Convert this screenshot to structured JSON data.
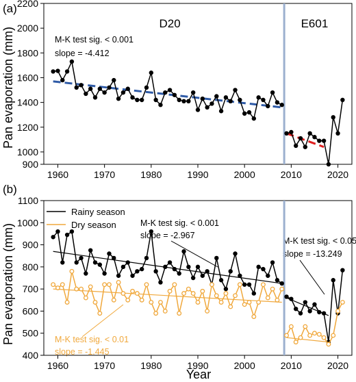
{
  "chart_data": [
    {
      "panel": "(a)",
      "type": "line",
      "ylabel": "Pan evaporation (mm)",
      "xlim": [
        1957,
        2023
      ],
      "ylim": [
        900,
        2200
      ],
      "yticks": [
        900,
        1000,
        1200,
        1400,
        1600,
        1800,
        2000,
        2200
      ],
      "xticks": [
        1960,
        1970,
        1980,
        1990,
        2000,
        2010,
        2020
      ],
      "periods": [
        {
          "label": "D20",
          "x": 1984
        },
        {
          "label": "E601",
          "x": 2015
        }
      ],
      "divider_x": 2008.5,
      "series": [
        {
          "color": "#000000",
          "x": [
            1959,
            1960,
            1961,
            1962,
            1963,
            1964,
            1965,
            1966,
            1967,
            1968,
            1969,
            1970,
            1971,
            1972,
            1973,
            1974,
            1975,
            1976,
            1977,
            1978,
            1979,
            1980,
            1981,
            1982,
            1983,
            1984,
            1985,
            1986,
            1987,
            1988,
            1989,
            1990,
            1991,
            1992,
            1993,
            1994,
            1995,
            1996,
            1997,
            1998,
            1999,
            2000,
            2001,
            2002,
            2003,
            2004,
            2005,
            2006,
            2007,
            2008
          ],
          "values": [
            1650,
            1655,
            1580,
            1650,
            1730,
            1520,
            1540,
            1470,
            1510,
            1440,
            1510,
            1480,
            1520,
            1580,
            1430,
            1480,
            1510,
            1440,
            1420,
            1420,
            1520,
            1640,
            1420,
            1380,
            1480,
            1500,
            1460,
            1420,
            1410,
            1410,
            1480,
            1340,
            1430,
            1360,
            1390,
            1450,
            1330,
            1440,
            1410,
            1500,
            1420,
            1310,
            1320,
            1270,
            1440,
            1420,
            1370,
            1480,
            1400,
            1380
          ]
        },
        {
          "color": "#000000",
          "x": [
            2009,
            2010,
            2011,
            2012,
            2013,
            2014,
            2015,
            2016,
            2017,
            2018,
            2019,
            2020,
            2021
          ],
          "values": [
            1150,
            1160,
            1050,
            1110,
            1040,
            1150,
            1120,
            1090,
            1090,
            900,
            1280,
            1150,
            1420
          ]
        }
      ],
      "trend_lines": [
        {
          "color": "#2e5aa6",
          "x": [
            1959,
            2008
          ],
          "y": [
            1570,
            1360
          ]
        },
        {
          "color": "#e02020",
          "x": [
            2009,
            2017
          ],
          "y": [
            1150,
            1040
          ]
        }
      ],
      "annotations": [
        {
          "text": "M-K test sig. < 0.001",
          "color": "#000000"
        },
        {
          "text": "slope = -4.412",
          "color": "#000000"
        }
      ]
    },
    {
      "panel": "(b)",
      "type": "line",
      "xlabel": "Year",
      "ylabel": "Pan evaporation (mm)",
      "xlim": [
        1957,
        2023
      ],
      "ylim": [
        400,
        1100
      ],
      "yticks": [
        400,
        500,
        600,
        700,
        800,
        900,
        1000,
        1100
      ],
      "xticks": [
        1960,
        1970,
        1980,
        1990,
        2000,
        2010,
        2020
      ],
      "divider_x": 2008.5,
      "legend": [
        {
          "name": "Rainy season",
          "color": "#000000"
        },
        {
          "name": "Dry season",
          "color": "#f0a83c"
        }
      ],
      "series": [
        {
          "name": "Rainy season",
          "color": "#000000",
          "x": [
            1959,
            1960,
            1961,
            1962,
            1963,
            1964,
            1965,
            1966,
            1967,
            1968,
            1969,
            1970,
            1971,
            1972,
            1973,
            1974,
            1975,
            1976,
            1977,
            1978,
            1979,
            1980,
            1981,
            1982,
            1983,
            1984,
            1985,
            1986,
            1987,
            1988,
            1989,
            1990,
            1991,
            1992,
            1993,
            1994,
            1995,
            1996,
            1997,
            1998,
            1999,
            2000,
            2001,
            2002,
            2003,
            2004,
            2005,
            2006,
            2007,
            2008
          ],
          "values": [
            935,
            960,
            820,
            945,
            960,
            820,
            840,
            770,
            875,
            820,
            810,
            770,
            860,
            840,
            760,
            800,
            820,
            760,
            780,
            790,
            840,
            960,
            780,
            730,
            800,
            820,
            790,
            770,
            870,
            800,
            750,
            800,
            760,
            780,
            720,
            840,
            740,
            700,
            780,
            860,
            760,
            720,
            720,
            680,
            800,
            790,
            760,
            820,
            740,
            725
          ]
        },
        {
          "name": "Rainy season",
          "color": "#000000",
          "x": [
            2009,
            2010,
            2011,
            2012,
            2013,
            2014,
            2015,
            2016,
            2017,
            2018,
            2019,
            2020,
            2021
          ],
          "values": [
            665,
            655,
            610,
            590,
            640,
            600,
            630,
            595,
            590,
            460,
            740,
            590,
            785
          ]
        },
        {
          "name": "Dry season",
          "color": "#f0a83c",
          "x": [
            1959,
            1960,
            1961,
            1962,
            1963,
            1964,
            1965,
            1966,
            1967,
            1968,
            1969,
            1970,
            1971,
            1972,
            1973,
            1974,
            1975,
            1976,
            1977,
            1978,
            1979,
            1980,
            1981,
            1982,
            1983,
            1984,
            1985,
            1986,
            1987,
            1988,
            1989,
            1990,
            1991,
            1992,
            1993,
            1994,
            1995,
            1996,
            1997,
            1998,
            1999,
            2000,
            2001,
            2002,
            2003,
            2004,
            2005,
            2006,
            2007,
            2008
          ],
          "values": [
            720,
            705,
            720,
            640,
            780,
            700,
            700,
            660,
            710,
            640,
            590,
            720,
            720,
            650,
            730,
            680,
            650,
            690,
            680,
            650,
            720,
            640,
            590,
            640,
            600,
            690,
            720,
            590,
            680,
            700,
            680,
            640,
            690,
            600,
            720,
            670,
            640,
            680,
            620,
            670,
            720,
            630,
            640,
            575,
            640,
            720,
            660,
            700,
            650,
            700
          ]
        },
        {
          "name": "Dry season",
          "color": "#f0a83c",
          "x": [
            2009,
            2010,
            2011,
            2012,
            2013,
            2014,
            2015,
            2016,
            2017,
            2018,
            2019,
            2020,
            2021
          ],
          "values": [
            490,
            530,
            460,
            480,
            530,
            490,
            500,
            495,
            480,
            450,
            490,
            600,
            640
          ]
        }
      ],
      "trend_lines": [
        {
          "color": "#000000",
          "x": [
            1959,
            2008
          ],
          "y": [
            870,
            725
          ]
        },
        {
          "color": "#000000",
          "x": [
            2009,
            2018
          ],
          "y": [
            660,
            580
          ]
        },
        {
          "color": "#f0a83c",
          "x": [
            1959,
            2008
          ],
          "y": [
            700,
            640
          ]
        },
        {
          "color": "#f0a83c",
          "x": [
            2009,
            2018
          ],
          "y": [
            480,
            460
          ]
        }
      ],
      "annotations": [
        {
          "text": "M-K test sig. < 0.001",
          "color": "#000000"
        },
        {
          "text": "slope = -2.967",
          "color": "#000000"
        },
        {
          "text": "M-K test sig. < 0.05",
          "color": "#000000"
        },
        {
          "text": "slope = -13.249",
          "color": "#000000"
        },
        {
          "text": "M-K test sig. < 0.01",
          "color": "#f0a83c"
        },
        {
          "text": "slope = -1.445",
          "color": "#f0a83c"
        }
      ]
    }
  ]
}
